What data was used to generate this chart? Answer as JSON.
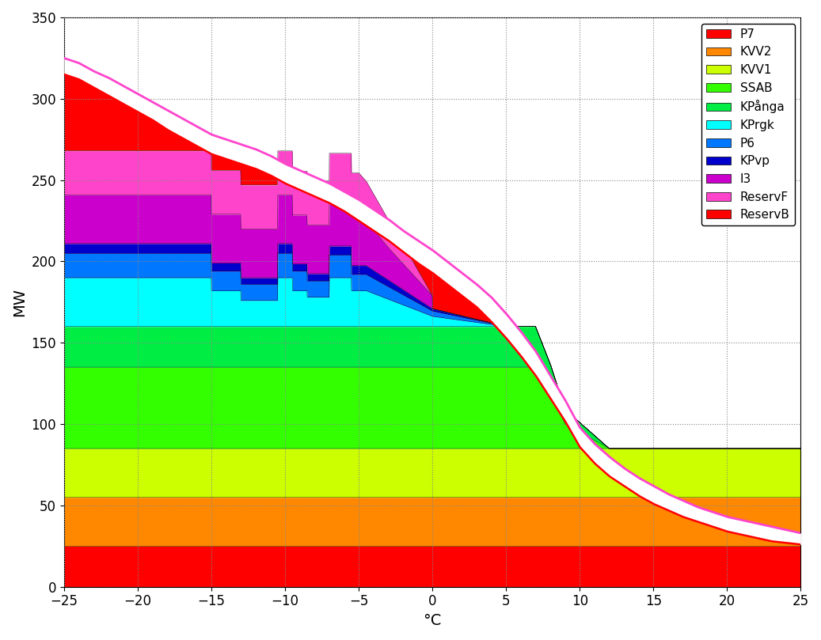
{
  "xlabel": "°C",
  "ylabel": "MW",
  "xlim": [
    -25,
    25
  ],
  "ylim": [
    0,
    350
  ],
  "xticks": [
    -25,
    -20,
    -15,
    -10,
    -5,
    0,
    5,
    10,
    15,
    20,
    25
  ],
  "yticks": [
    0,
    50,
    100,
    150,
    200,
    250,
    300,
    350
  ],
  "legend_labels": [
    "P7",
    "KVV2",
    "KVV1",
    "SSAB",
    "KPånga",
    "KPrgk",
    "P6",
    "KPvp",
    "I3",
    "ReservF",
    "ReservB"
  ],
  "legend_colors": [
    "#ff0000",
    "#ff8800",
    "#ccff00",
    "#33ff00",
    "#00ee44",
    "#00ffff",
    "#0077ff",
    "#0000cc",
    "#cc00cc",
    "#ff44cc",
    "#ff0000"
  ],
  "reservB_color": "#ff0000",
  "reservF_color": "#ff44cc",
  "rf_temps": [
    -25,
    -24,
    -23,
    -22,
    -21,
    -20,
    -19,
    -18,
    -17,
    -16,
    -15,
    -14,
    -13,
    -12,
    -11,
    -10,
    -9,
    -8,
    -7,
    -6,
    -5,
    -4,
    -3,
    -2,
    -1,
    0,
    1,
    2,
    3,
    4,
    5,
    6,
    7,
    8,
    9,
    10,
    11,
    12,
    13,
    14,
    15,
    16,
    17,
    18,
    19,
    20,
    21,
    22,
    23,
    24,
    25
  ],
  "rf_vals": [
    325,
    322,
    317,
    313,
    308,
    303,
    298,
    293,
    288,
    283,
    278,
    275,
    272,
    269,
    265,
    260,
    256,
    252,
    248,
    243,
    238,
    232,
    226,
    219,
    213,
    207,
    200,
    193,
    186,
    178,
    168,
    157,
    145,
    130,
    115,
    98,
    88,
    80,
    73,
    67,
    62,
    57,
    53,
    49,
    46,
    43,
    41,
    39,
    37,
    35,
    33
  ],
  "rb_temps": [
    -25,
    -24,
    -23,
    -22,
    -21,
    -20,
    -19,
    -18,
    -17,
    -16,
    -15,
    -14,
    -13,
    -12,
    -11,
    -10,
    -9,
    -8,
    -7,
    -6,
    -5,
    -4,
    -3,
    -2,
    -1,
    0,
    1,
    2,
    3,
    4,
    5,
    6,
    7,
    8,
    9,
    10,
    11,
    12,
    13,
    14,
    15,
    16,
    17,
    18,
    19,
    20,
    21,
    22,
    23,
    24,
    25
  ],
  "rb_vals": [
    315,
    312,
    307,
    302,
    297,
    292,
    287,
    281,
    276,
    271,
    266,
    263,
    260,
    257,
    253,
    248,
    244,
    240,
    236,
    231,
    225,
    219,
    213,
    206,
    199,
    193,
    186,
    179,
    172,
    163,
    153,
    142,
    130,
    116,
    102,
    86,
    76,
    68,
    62,
    56,
    51,
    47,
    43,
    40,
    37,
    34,
    32,
    30,
    28,
    27,
    26
  ]
}
